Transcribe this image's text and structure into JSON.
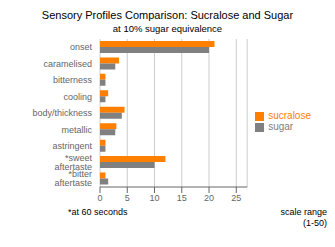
{
  "chart_data": {
    "type": "bar",
    "orientation": "horizontal",
    "title": "Sensory Profiles Comparison: Sucralose and Sugar",
    "subtitle": "at 10% sugar equivalence",
    "categories": [
      "onset",
      "caramelised",
      "bitterness",
      "cooling",
      "body/thickness",
      "metallic",
      "astringent",
      "*sweet aftertaste",
      "*bitter aftertaste"
    ],
    "series": [
      {
        "name": "sucralose",
        "color": "#FF7F00",
        "values": [
          21,
          3.5,
          1.0,
          1.5,
          4.5,
          3.0,
          1.0,
          12,
          1.0
        ]
      },
      {
        "name": "sugar",
        "color": "#808080",
        "values": [
          20,
          2.8,
          1.0,
          1.0,
          4.0,
          2.8,
          1.0,
          10,
          1.5
        ]
      }
    ],
    "xlim": [
      0,
      27
    ],
    "xticks": [
      0,
      5,
      10,
      15,
      20,
      25
    ],
    "grid": true,
    "legend": "right",
    "annotations": [
      "*at 60 seconds",
      "scale range\n(1-50)"
    ]
  }
}
